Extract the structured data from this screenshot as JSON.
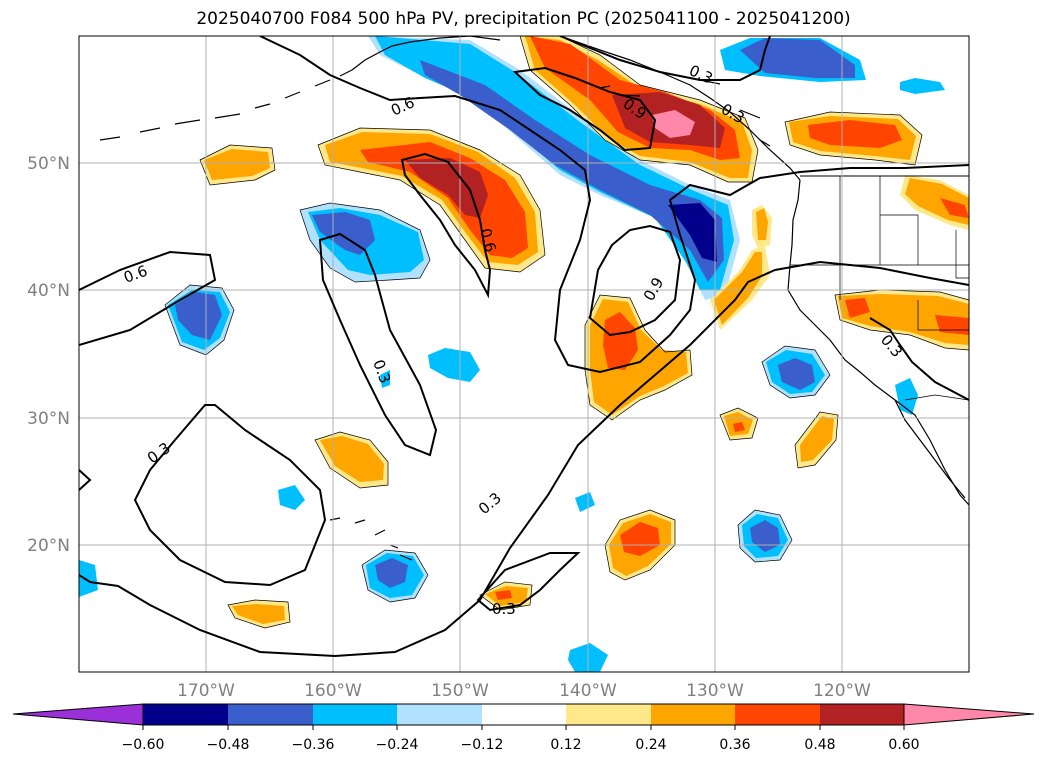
{
  "title": "2025040700 F084 500 hPa PV, precipitation PC (2025041100 - 2025041200)",
  "map": {
    "lon_labels": [
      "170°W",
      "160°W",
      "150°W",
      "140°W",
      "130°W",
      "120°W"
    ],
    "lat_labels": [
      "50°N",
      "40°N",
      "30°N",
      "20°N"
    ],
    "contour_labels": [
      "0.3",
      "0.6",
      "0.6",
      "0.6",
      "0.9",
      "0.9",
      "0.3",
      "0.3",
      "0.3",
      "0.3",
      "0.3",
      "0.3"
    ],
    "grid_color": "#b0b0b0",
    "tick_label_color": "#808080"
  },
  "colorbar": {
    "tick_labels": [
      "−0.60",
      "−0.48",
      "−0.36",
      "−0.24",
      "−0.12",
      "0.12",
      "0.24",
      "0.36",
      "0.48",
      "0.60"
    ],
    "colors": [
      "#9b30d9",
      "#00008b",
      "#3a5fcd",
      "#00bfff",
      "#b0e2ff",
      "#ffffff",
      "#ffe88a",
      "#ffa500",
      "#ff4500",
      "#b22222",
      "#ff88aa"
    ]
  }
}
